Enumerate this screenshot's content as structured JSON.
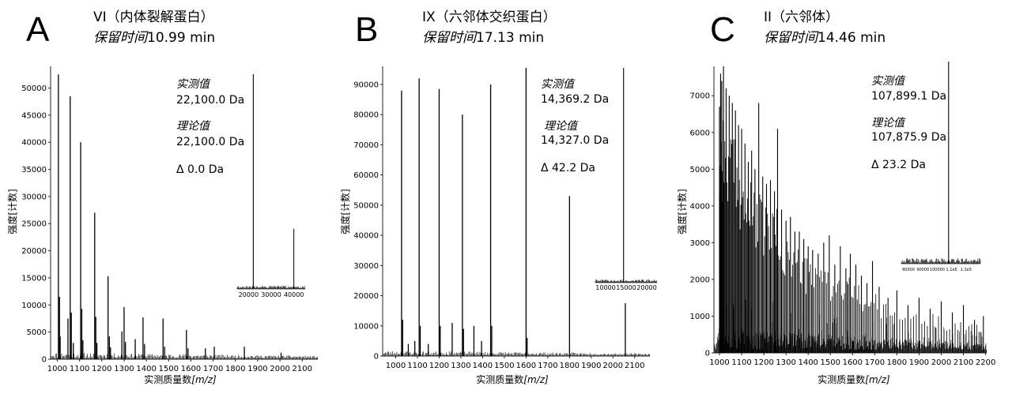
{
  "chart_data": [
    {
      "type": "line",
      "panel_label": "A",
      "title": "VI（内体裂解蛋白）",
      "retention_label": "保留时间",
      "retention_time": "10.99 min",
      "xlabel": "实测质量数",
      "xlabel_unit": "[m/z]",
      "ylabel": "强度[计数]",
      "xlim": [
        970,
        2170
      ],
      "ylim": [
        0,
        54000
      ],
      "xticks": [
        1000,
        1100,
        1200,
        1300,
        1400,
        1500,
        1600,
        1700,
        1800,
        1900,
        2000,
        2100
      ],
      "yticks": [
        0,
        5000,
        10000,
        15000,
        20000,
        25000,
        30000,
        35000,
        40000,
        45000,
        50000
      ],
      "series": [
        {
          "peaks": [
            [
              1005,
              52500
            ],
            [
              1010,
              11500
            ],
            [
              1013,
              4200
            ],
            [
              1048,
              7500
            ],
            [
              1058,
              48500
            ],
            [
              1063,
              8600
            ],
            [
              1072,
              3000
            ],
            [
              1105,
              40000
            ],
            [
              1110,
              9300
            ],
            [
              1115,
              3500
            ],
            [
              1168,
              27000
            ],
            [
              1173,
              7800
            ],
            [
              1178,
              3000
            ],
            [
              1228,
              15300
            ],
            [
              1234,
              4200
            ],
            [
              1239,
              2200
            ],
            [
              1290,
              5100
            ],
            [
              1300,
              9600
            ],
            [
              1306,
              3200
            ],
            [
              1350,
              3700
            ],
            [
              1385,
              7700
            ],
            [
              1392,
              2800
            ],
            [
              1475,
              7500
            ],
            [
              1482,
              2300
            ],
            [
              1580,
              5400
            ],
            [
              1587,
              2000
            ],
            [
              1665,
              2000
            ],
            [
              1705,
              2300
            ],
            [
              1840,
              2300
            ],
            [
              2005,
              1200
            ]
          ]
        }
      ],
      "annotations": {
        "observed_label": "实测值",
        "observed_value": "22,100.0 Da",
        "theoretical_label": "理论值",
        "theoretical_value": "22,100.0 Da",
        "delta": "Δ 0.0 Da"
      },
      "inset": {
        "xlim": [
          15000,
          45000
        ],
        "xticks": [
          20000,
          30000,
          40000
        ],
        "peak_x": 22100,
        "side_peaks": [
          [
            40000,
            0.28
          ]
        ]
      }
    },
    {
      "type": "line",
      "panel_label": "B",
      "title": "IX（六邻体交织蛋白）",
      "retention_label": "保留时间",
      "retention_time": "17.13 min",
      "xlabel": "实测质量数",
      "xlabel_unit": "[m/z]",
      "ylabel": "强度[计数]",
      "xlim": [
        940,
        2170
      ],
      "ylim": [
        0,
        96000
      ],
      "xticks": [
        1000,
        1100,
        1200,
        1300,
        1400,
        1500,
        1600,
        1700,
        1800,
        1900,
        2000,
        2100
      ],
      "yticks": [
        0,
        10000,
        20000,
        30000,
        40000,
        50000,
        60000,
        70000,
        80000,
        90000
      ],
      "series": [
        {
          "peaks": [
            [
              1027,
              88000
            ],
            [
              1032,
              12000
            ],
            [
              1058,
              4000
            ],
            [
              1088,
              5000
            ],
            [
              1108,
              92000
            ],
            [
              1113,
              10000
            ],
            [
              1150,
              4000
            ],
            [
              1200,
              88500
            ],
            [
              1205,
              10000
            ],
            [
              1260,
              11000
            ],
            [
              1307,
              80000
            ],
            [
              1312,
              9000
            ],
            [
              1360,
              10000
            ],
            [
              1395,
              5000
            ],
            [
              1437,
              90000
            ],
            [
              1442,
              10000
            ],
            [
              1600,
              95500
            ],
            [
              1605,
              6000
            ],
            [
              1800,
              53000
            ],
            [
              2057,
              17500
            ]
          ]
        }
      ],
      "annotations": {
        "observed_label": "实测值",
        "observed_value": "14,369.2 Da",
        "theoretical_label": "理论值",
        "theoretical_value": "14,327.0 Da",
        "delta": "Δ 42.2 Da"
      },
      "inset": {
        "xlim": [
          7500,
          22500
        ],
        "xticks": [
          10000,
          15000,
          20000
        ],
        "peak_x": 14369,
        "side_peaks": []
      }
    },
    {
      "type": "line",
      "panel_label": "C",
      "title": "II（六邻体）",
      "retention_label": "保留时间",
      "retention_time": "14.46 min",
      "xlabel": "实测质量数",
      "xlabel_unit": "[m/z]",
      "ylabel": "强度[计数]",
      "xlim": [
        975,
        2205
      ],
      "ylim": [
        0,
        7800
      ],
      "xticks": [
        1000,
        1100,
        1200,
        1300,
        1400,
        1500,
        1600,
        1700,
        1800,
        1900,
        2000,
        2100,
        2200
      ],
      "yticks": [
        0,
        1000,
        2000,
        3000,
        4000,
        5000,
        6000,
        7000
      ],
      "series": [
        {
          "peaks": [
            [
              1000,
              6700
            ],
            [
              1005,
              7600
            ],
            [
              1010,
              7400
            ],
            [
              1018,
              7800
            ],
            [
              1030,
              7200
            ],
            [
              1044,
              7000
            ],
            [
              1058,
              6800
            ],
            [
              1072,
              6600
            ],
            [
              1086,
              6200
            ],
            [
              1100,
              6100
            ],
            [
              1115,
              5700
            ],
            [
              1130,
              5200
            ],
            [
              1145,
              5500
            ],
            [
              1160,
              5000
            ],
            [
              1177,
              6800
            ],
            [
              1195,
              4800
            ],
            [
              1212,
              4600
            ],
            [
              1230,
              4700
            ],
            [
              1248,
              4400
            ],
            [
              1262,
              6100
            ],
            [
              1280,
              3900
            ],
            [
              1300,
              3600
            ],
            [
              1320,
              3700
            ],
            [
              1340,
              3300
            ],
            [
              1360,
              3300
            ],
            [
              1380,
              3100
            ],
            [
              1400,
              2900
            ],
            [
              1420,
              2800
            ],
            [
              1445,
              2700
            ],
            [
              1470,
              3000
            ],
            [
              1495,
              3200
            ],
            [
              1520,
              2400
            ],
            [
              1545,
              2900
            ],
            [
              1570,
              2300
            ],
            [
              1590,
              2700
            ],
            [
              1615,
              2400
            ],
            [
              1640,
              2100
            ],
            [
              1665,
              1900
            ],
            [
              1690,
              2500
            ],
            [
              1720,
              1800
            ],
            [
              1760,
              1500
            ],
            [
              1800,
              1700
            ],
            [
              1850,
              1300
            ],
            [
              1900,
              1500
            ],
            [
              1950,
              1200
            ],
            [
              2000,
              1400
            ],
            [
              2050,
              1100
            ],
            [
              2100,
              1300
            ],
            [
              2150,
              900
            ],
            [
              2190,
              1000
            ]
          ]
        }
      ],
      "annotations": {
        "observed_label": "实测值",
        "observed_value": "107,899.1 Da",
        "theoretical_label": "理论值",
        "theoretical_value": "107,875.9 Da",
        "delta": "Δ 23.2 Da"
      },
      "inset": {
        "xlim": [
          75000,
          130000
        ],
        "xticks": [
          80000,
          90000,
          100000,
          110000,
          120000
        ],
        "xtick_labels": [
          "80000",
          "90000",
          "100000",
          "1.1e5",
          "1.2e5"
        ],
        "peak_x": 107899,
        "side_peaks": []
      }
    }
  ]
}
